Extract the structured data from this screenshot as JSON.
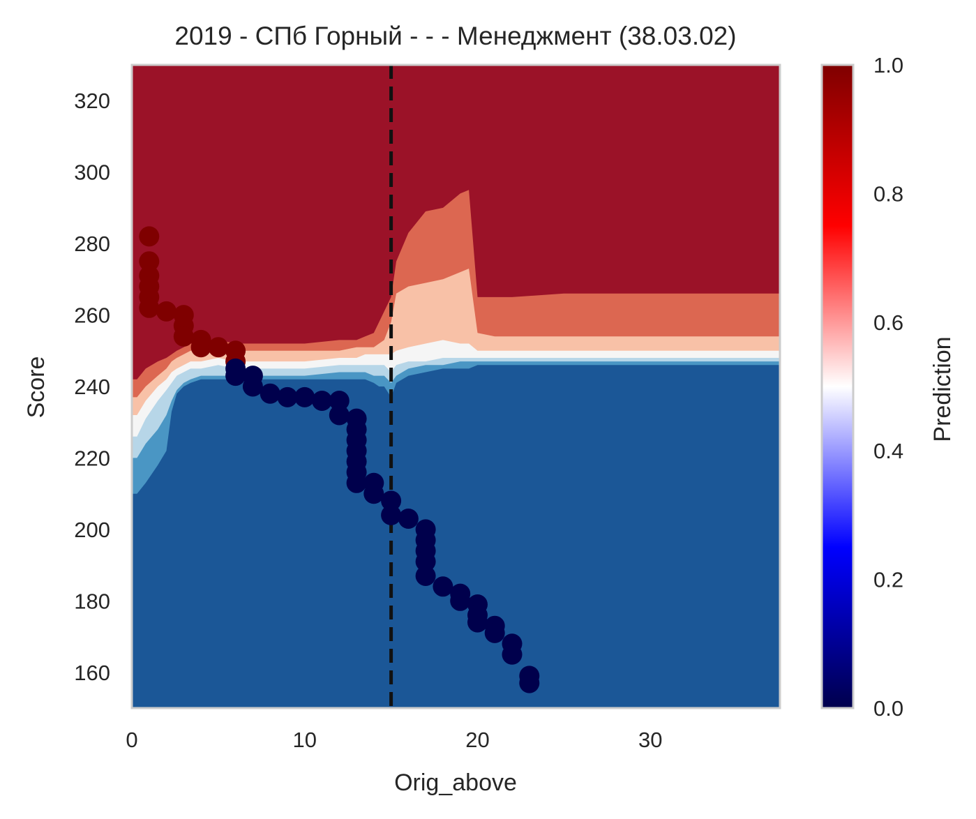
{
  "chart_data": {
    "type": "heatmap",
    "title": "2019 - СПб Горный - - - Менеджмент (38.03.02)",
    "xlabel": "Orig_above",
    "ylabel": "Score",
    "xlim": [
      0,
      37.5
    ],
    "ylim": [
      150,
      330
    ],
    "xticks": [
      0,
      10,
      20,
      30
    ],
    "yticks": [
      160,
      180,
      200,
      220,
      240,
      260,
      280,
      300,
      320
    ],
    "grid": false,
    "vline_x": 15,
    "colorbar": {
      "label": "Prediction",
      "ticks": [
        0.0,
        0.2,
        0.4,
        0.6,
        0.8,
        1.0
      ],
      "tick_labels": [
        "0.0",
        "0.2",
        "0.4",
        "0.6",
        "0.8",
        "1.0"
      ],
      "colormap": "seismic"
    },
    "contour_colors": {
      "low": "#1b5797",
      "band1": "#4a96c4",
      "band2": "#b7d6e8",
      "mid": "#f5f5f5",
      "band3": "#f8c1a7",
      "band4": "#dc6751",
      "high": "#9b1228"
    },
    "contour_boundaries": {
      "x": [
        0,
        0.3,
        0.8,
        1.5,
        2,
        2.3,
        2.6,
        3,
        3.4,
        4,
        5,
        6,
        8,
        10,
        12,
        13,
        13.5,
        14,
        14.3,
        14.6,
        15,
        15.3,
        16,
        17,
        18,
        19,
        19.5,
        20,
        21,
        22,
        25,
        30,
        37.5
      ],
      "b1": [
        210,
        210,
        213,
        218,
        222,
        233,
        238,
        240,
        241,
        242,
        242,
        242,
        242,
        242,
        242,
        242,
        242,
        241,
        240,
        240,
        237,
        241,
        243,
        244,
        245,
        245,
        245,
        246,
        246,
        246,
        246,
        246,
        246
      ],
      "b2": [
        220,
        220,
        224,
        228,
        232,
        236,
        239,
        241,
        242,
        243,
        243,
        243,
        243,
        243,
        244,
        244,
        244,
        243,
        243,
        243,
        241,
        243,
        245,
        246,
        246,
        247,
        247,
        247,
        247,
        247,
        247,
        247,
        247
      ],
      "b3": [
        226,
        226,
        231,
        236,
        239,
        241,
        243,
        244,
        245,
        245,
        246,
        245,
        245,
        245,
        246,
        246,
        246,
        246,
        246,
        246,
        244,
        246,
        247,
        247,
        248,
        248,
        248,
        248,
        248,
        248,
        248,
        248,
        248
      ],
      "b4": [
        232,
        232,
        236,
        240,
        242,
        244,
        245,
        246,
        247,
        247,
        248,
        247,
        247,
        247,
        248,
        248,
        249,
        249,
        249,
        249,
        249,
        250,
        251,
        252,
        253,
        252,
        252,
        250,
        250,
        250,
        250,
        250,
        250
      ],
      "b5": [
        237,
        237,
        240,
        243,
        245,
        247,
        248,
        249,
        250,
        250,
        251,
        250,
        250,
        250,
        250,
        251,
        251,
        251,
        252,
        253,
        258,
        266,
        268,
        269,
        270,
        272,
        273,
        255,
        254,
        254,
        254,
        254,
        254
      ],
      "b6": [
        242,
        242,
        245,
        247,
        248,
        249,
        250,
        251,
        252,
        252,
        253,
        252,
        252,
        252,
        253,
        253,
        254,
        255,
        258,
        261,
        265,
        275,
        283,
        289,
        290,
        294,
        295,
        265,
        265,
        265,
        266,
        266,
        266
      ]
    },
    "points": [
      {
        "x": 1,
        "y": 282,
        "c": 1
      },
      {
        "x": 1,
        "y": 275,
        "c": 1
      },
      {
        "x": 1,
        "y": 271,
        "c": 1
      },
      {
        "x": 1,
        "y": 268,
        "c": 1
      },
      {
        "x": 1,
        "y": 265,
        "c": 1
      },
      {
        "x": 1,
        "y": 262,
        "c": 1
      },
      {
        "x": 2,
        "y": 261,
        "c": 1
      },
      {
        "x": 3,
        "y": 260,
        "c": 1
      },
      {
        "x": 3,
        "y": 257,
        "c": 1
      },
      {
        "x": 3,
        "y": 254,
        "c": 1
      },
      {
        "x": 4,
        "y": 253,
        "c": 1
      },
      {
        "x": 4,
        "y": 251,
        "c": 1
      },
      {
        "x": 5,
        "y": 251,
        "c": 1
      },
      {
        "x": 6,
        "y": 250,
        "c": 1
      },
      {
        "x": 6,
        "y": 247,
        "c": 1
      },
      {
        "x": 6,
        "y": 245,
        "c": 0
      },
      {
        "x": 6,
        "y": 243,
        "c": 0
      },
      {
        "x": 7,
        "y": 243,
        "c": 0
      },
      {
        "x": 7,
        "y": 240,
        "c": 0
      },
      {
        "x": 8,
        "y": 238,
        "c": 0
      },
      {
        "x": 9,
        "y": 237,
        "c": 0
      },
      {
        "x": 10,
        "y": 237,
        "c": 0
      },
      {
        "x": 11,
        "y": 236,
        "c": 0
      },
      {
        "x": 12,
        "y": 236,
        "c": 0
      },
      {
        "x": 12,
        "y": 232,
        "c": 0
      },
      {
        "x": 13,
        "y": 231,
        "c": 0
      },
      {
        "x": 13,
        "y": 228,
        "c": 0
      },
      {
        "x": 13,
        "y": 225,
        "c": 0
      },
      {
        "x": 13,
        "y": 222,
        "c": 0
      },
      {
        "x": 13,
        "y": 219,
        "c": 0
      },
      {
        "x": 13,
        "y": 216,
        "c": 0
      },
      {
        "x": 13,
        "y": 213,
        "c": 0
      },
      {
        "x": 14,
        "y": 213,
        "c": 0
      },
      {
        "x": 14,
        "y": 210,
        "c": 0
      },
      {
        "x": 15,
        "y": 208,
        "c": 0
      },
      {
        "x": 15,
        "y": 204,
        "c": 0
      },
      {
        "x": 16,
        "y": 203,
        "c": 0
      },
      {
        "x": 17,
        "y": 200,
        "c": 0
      },
      {
        "x": 17,
        "y": 197,
        "c": 0
      },
      {
        "x": 17,
        "y": 194,
        "c": 0
      },
      {
        "x": 17,
        "y": 191,
        "c": 0
      },
      {
        "x": 17,
        "y": 187,
        "c": 0
      },
      {
        "x": 18,
        "y": 184,
        "c": 0
      },
      {
        "x": 19,
        "y": 182,
        "c": 0
      },
      {
        "x": 19,
        "y": 180,
        "c": 0
      },
      {
        "x": 20,
        "y": 179,
        "c": 0
      },
      {
        "x": 20,
        "y": 176,
        "c": 0
      },
      {
        "x": 20,
        "y": 174,
        "c": 0
      },
      {
        "x": 21,
        "y": 173,
        "c": 0
      },
      {
        "x": 21,
        "y": 171,
        "c": 0
      },
      {
        "x": 22,
        "y": 168,
        "c": 0
      },
      {
        "x": 22,
        "y": 165,
        "c": 0
      },
      {
        "x": 23,
        "y": 159,
        "c": 0
      },
      {
        "x": 23,
        "y": 157,
        "c": 0
      }
    ]
  }
}
